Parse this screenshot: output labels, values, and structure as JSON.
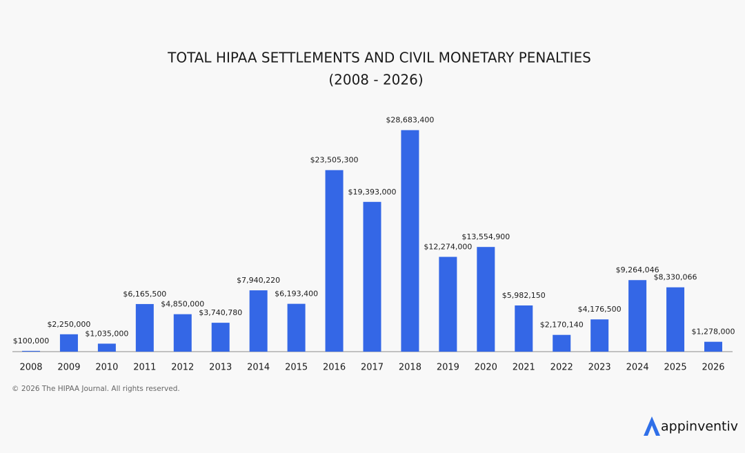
{
  "chart_data": {
    "type": "bar",
    "title": "TOTAL HIPAA SETTLEMENTS AND CIVIL MONETARY PENALTIES",
    "subtitle": "(2008 - 2026)",
    "categories": [
      "2008",
      "2009",
      "2010",
      "2011",
      "2012",
      "2013",
      "2014",
      "2015",
      "2016",
      "2017",
      "2018",
      "2019",
      "2020",
      "2021",
      "2022",
      "2023",
      "2024",
      "2025",
      "2026"
    ],
    "values": [
      100000,
      2250000,
      1035000,
      6165500,
      4850000,
      3740780,
      7940220,
      6193400,
      23505300,
      19393000,
      28683400,
      12274000,
      13554900,
      5982150,
      2170140,
      4176500,
      9264046,
      8330066,
      1278000
    ],
    "value_labels": [
      "$100,000",
      "$2,250,000",
      "$1,035,000",
      "$6,165,500",
      "$4,850,000",
      "$3,740,780",
      "$7,940,220",
      "$6,193,400",
      "$23,505,300",
      "$19,393,000",
      "$28,683,400",
      "$12,274,000",
      "$13,554,900",
      "$5,982,150",
      "$2,170,140",
      "$4,176,500",
      "$9,264,046",
      "$8,330,066",
      "$1,278,000"
    ],
    "color": "#3467e6",
    "ylim": [
      0,
      30000000
    ]
  },
  "footer": {
    "copyright": "© 2026 The HIPAA Journal. All rights reserved.",
    "logo": "appinventiv"
  }
}
